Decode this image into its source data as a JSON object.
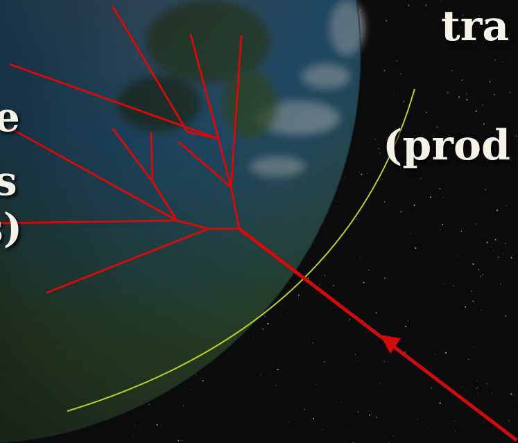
{
  "scene": {
    "description_colors": {
      "background": "#0b0b0c",
      "earth_ocean": "#2f6f9c",
      "earth_land": "#3c5a2c",
      "cascade_red": "#d10b0b",
      "atmosphere_line": "#b6d12a",
      "text": "#f5f2e8"
    }
  },
  "labels": {
    "left_line_1": "e",
    "left_line_2": "s",
    "left_line_3": "s)",
    "right_line_1": "tra",
    "right_line_2": "(prod"
  }
}
